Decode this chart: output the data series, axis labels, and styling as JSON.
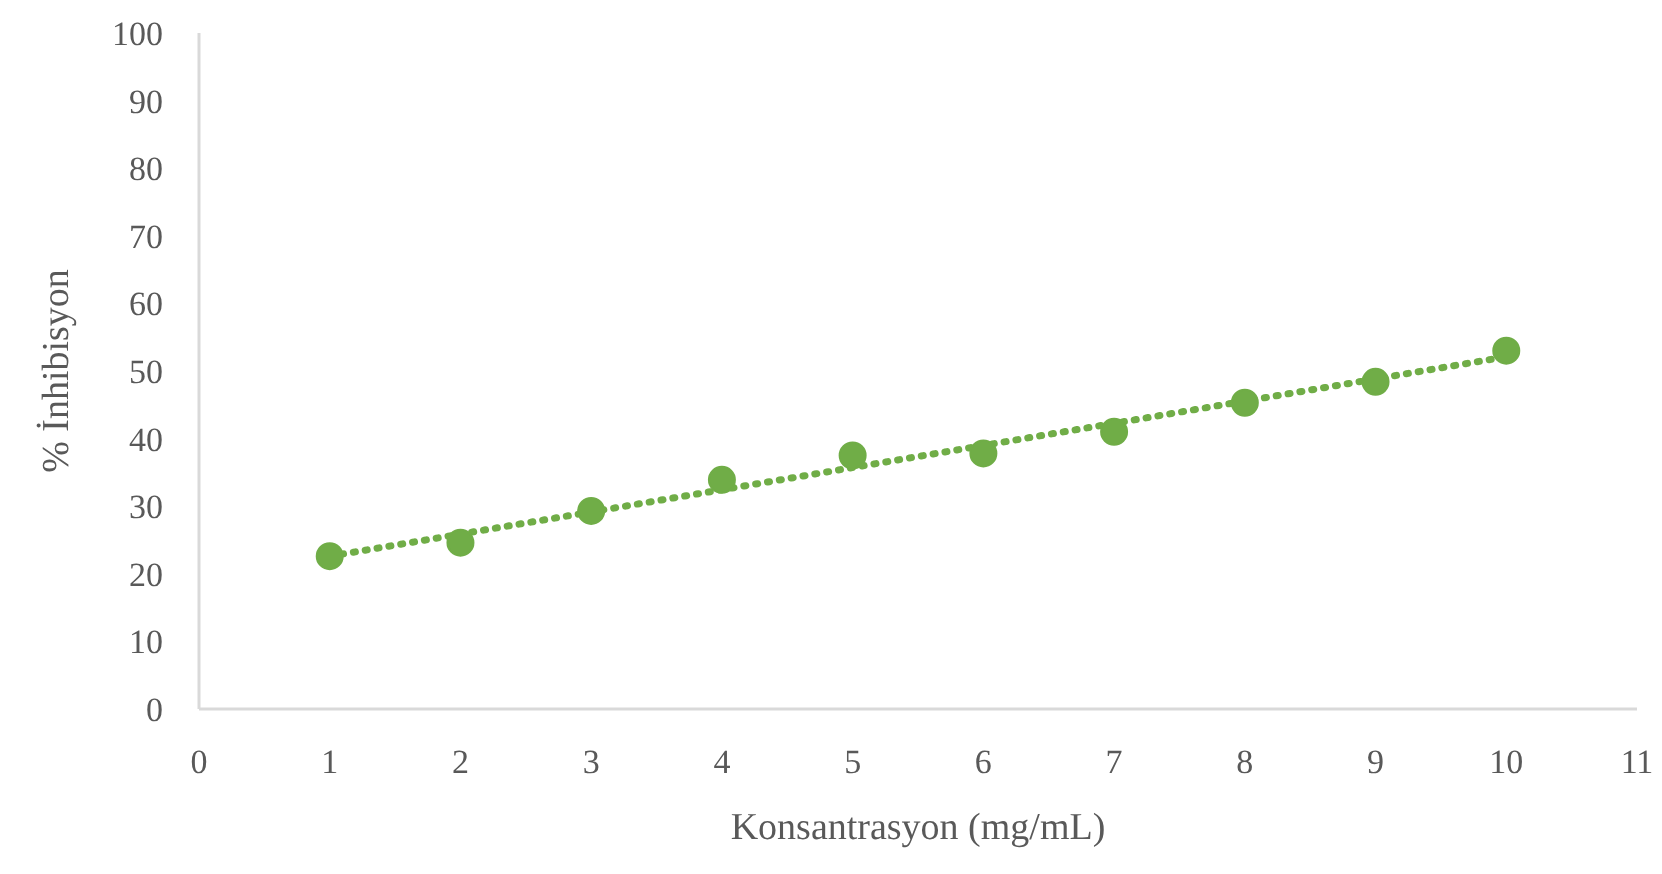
{
  "chart_data": {
    "type": "scatter",
    "xlabel": "Konsantrasyon (mg/mL)",
    "ylabel": "% İnhibisyon",
    "xlim": [
      0,
      11
    ],
    "xticks": [
      0,
      1,
      2,
      3,
      4,
      5,
      6,
      7,
      8,
      9,
      10,
      11
    ],
    "ylim": [
      0,
      100
    ],
    "yticks": [
      0,
      10,
      20,
      30,
      40,
      50,
      60,
      70,
      80,
      90,
      100
    ],
    "grid": false,
    "marker": "circle",
    "series": [
      {
        "color": "#70ad47",
        "x": [
          1,
          2,
          3,
          4,
          5,
          6,
          7,
          8,
          9,
          10
        ],
        "values": [
          22.6,
          24.6,
          29.3,
          33.9,
          37.5,
          37.8,
          41.0,
          45.3,
          48.4,
          53.0
        ]
      },
      {
        "type": "line",
        "color": "#70ad47",
        "x": [
          1,
          10
        ],
        "values": [
          22.6,
          52.1
        ],
        "line_style": "dotted",
        "marker": "none"
      }
    ]
  }
}
